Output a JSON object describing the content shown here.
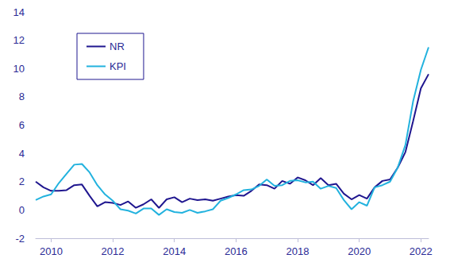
{
  "chart_data": {
    "type": "line",
    "x": [
      2009.5,
      2009.75,
      2010,
      2010.25,
      2010.5,
      2010.75,
      2011,
      2011.25,
      2011.5,
      2011.75,
      2012,
      2012.25,
      2012.5,
      2012.75,
      2013,
      2013.25,
      2013.5,
      2013.75,
      2014,
      2014.25,
      2014.5,
      2014.75,
      2015,
      2015.25,
      2015.5,
      2015.75,
      2016,
      2016.25,
      2016.5,
      2016.75,
      2017,
      2017.25,
      2017.5,
      2017.75,
      2018,
      2018.25,
      2018.5,
      2018.75,
      2019,
      2019.25,
      2019.5,
      2019.75,
      2020,
      2020.25,
      2020.5,
      2020.75,
      2021,
      2021.25,
      2021.5,
      2021.75,
      2022,
      2022.25
    ],
    "series": [
      {
        "name": "NR",
        "color": "#1f168f",
        "values": [
          2.0,
          1.6,
          1.35,
          1.35,
          1.4,
          1.75,
          1.8,
          1.0,
          0.25,
          0.55,
          0.5,
          0.35,
          0.6,
          0.15,
          0.4,
          0.75,
          0.15,
          0.75,
          0.9,
          0.55,
          0.8,
          0.7,
          0.75,
          0.65,
          0.8,
          0.95,
          1.05,
          1.0,
          1.35,
          1.8,
          1.75,
          1.5,
          2.05,
          1.85,
          2.3,
          2.1,
          1.75,
          2.25,
          1.75,
          1.85,
          1.15,
          0.75,
          1.05,
          0.8,
          1.6,
          2.05,
          2.15,
          3.0,
          4.1,
          6.3,
          8.6,
          9.6
        ]
      },
      {
        "name": "KPI",
        "color": "#22b2de",
        "values": [
          0.7,
          0.95,
          1.1,
          1.9,
          2.55,
          3.2,
          3.25,
          2.65,
          1.75,
          1.1,
          0.65,
          0.05,
          -0.05,
          -0.25,
          0.1,
          0.1,
          -0.35,
          0.05,
          -0.15,
          -0.2,
          0.0,
          -0.2,
          -0.1,
          0.05,
          0.65,
          0.85,
          1.1,
          1.4,
          1.45,
          1.7,
          2.15,
          1.7,
          1.75,
          2.05,
          2.1,
          1.95,
          2.0,
          1.5,
          1.7,
          1.55,
          0.7,
          0.05,
          0.55,
          0.3,
          1.6,
          1.75,
          2.0,
          3.0,
          4.6,
          7.7,
          9.9,
          11.5
        ]
      }
    ],
    "xlim": [
      2009.5,
      2022.25
    ],
    "xticks": [
      2010,
      2012,
      2014,
      2016,
      2018,
      2020,
      2022
    ],
    "ylim": [
      -2,
      14
    ],
    "yticks": [
      -2,
      0,
      2,
      4,
      6,
      8,
      10,
      12,
      14
    ],
    "grid": false,
    "legend": "upper left"
  }
}
